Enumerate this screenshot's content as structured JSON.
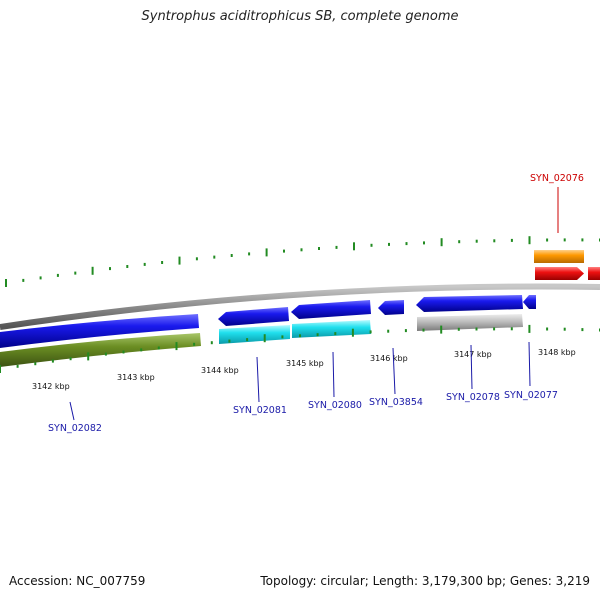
{
  "title": "Syntrophus aciditrophicus SB, complete genome",
  "footer": {
    "accession": "Accession: NC_007759",
    "info": "Topology: circular; Length: 3,179,300 bp; Genes: 3,219"
  },
  "colors": {
    "backbone": "#8a8a8a",
    "forward_cds": "#1010e0",
    "reverse_cds": "#1010e0",
    "rna": "#ee1111",
    "olive_track": "#6b8e23",
    "cyan_track": "#20e0ee",
    "grey_track": "#bdbdbd",
    "orange_track": "#ff9900",
    "tick": "#228b22",
    "label_blue": "#1a1aa8",
    "label_red": "#cc0000"
  },
  "ticks": [
    "3142 kbp",
    "3143 kbp",
    "3144 kbp",
    "3145 kbp",
    "3146 kbp",
    "3147 kbp",
    "3148 kbp"
  ],
  "genes": [
    {
      "id": "SYN_02082",
      "color": "label_blue"
    },
    {
      "id": "SYN_02081",
      "color": "label_blue"
    },
    {
      "id": "SYN_02080",
      "color": "label_blue"
    },
    {
      "id": "SYN_03854",
      "color": "label_blue"
    },
    {
      "id": "SYN_02078",
      "color": "label_blue"
    },
    {
      "id": "SYN_02077",
      "color": "label_blue"
    },
    {
      "id": "SYN_02076",
      "color": "label_red"
    }
  ]
}
